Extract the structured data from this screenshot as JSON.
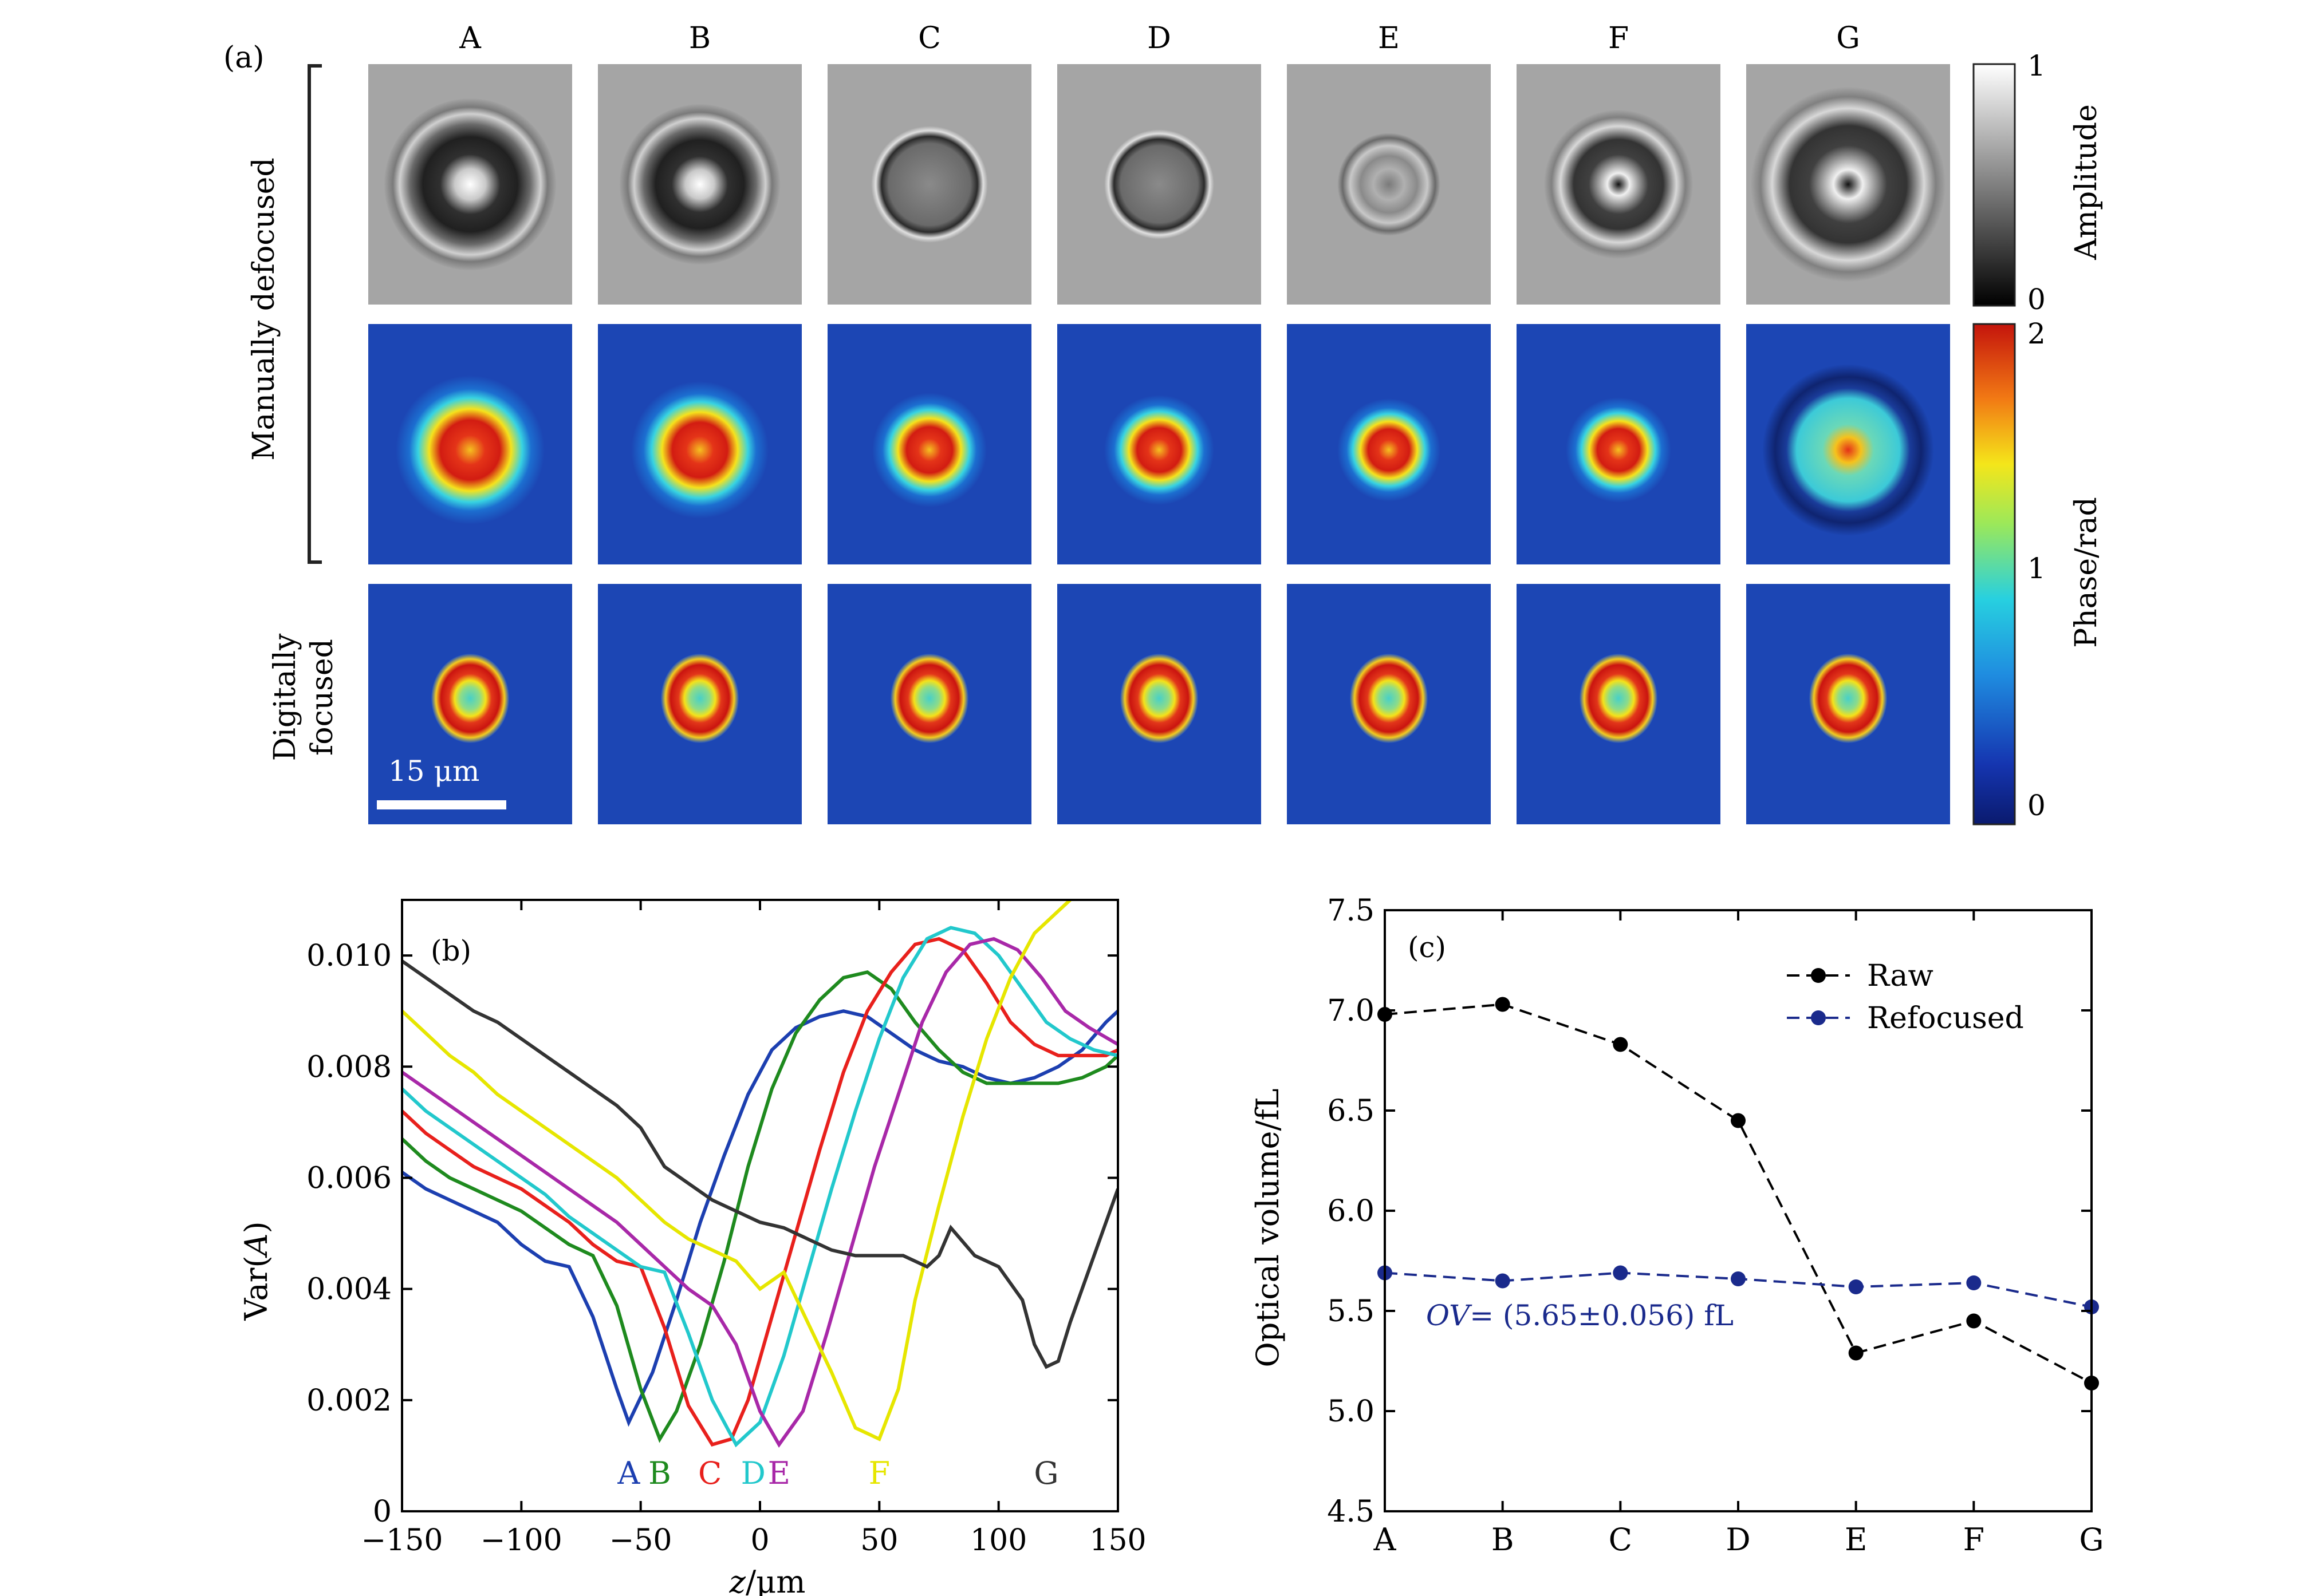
{
  "panel_a": {
    "label": "(a)",
    "columns": [
      "A",
      "B",
      "C",
      "D",
      "E",
      "F",
      "G"
    ],
    "row_label_defocused": "Manually defocused",
    "row_label_focused_1": "Digitally",
    "row_label_focused_2": "focused",
    "scalebar_label": "15 μm",
    "amplitude_colorbar": {
      "label": "Amplitude",
      "max": "1",
      "min": "0"
    },
    "phase_colorbar": {
      "label": "Phase/rad",
      "ticks": [
        "2",
        "1",
        "0"
      ]
    }
  },
  "chart_data": [
    {
      "type": "line",
      "panel_label": "(b)",
      "xlabel_italic": "z",
      "xlabel_unit": "/μm",
      "ylabel_prefix": "Var(",
      "ylabel_italic": "A",
      "ylabel_suffix": ")",
      "xlim": [
        -150,
        150
      ],
      "ylim": [
        0,
        0.011
      ],
      "xticks": [
        -150,
        -100,
        -50,
        0,
        50,
        100,
        150
      ],
      "xtick_labels": [
        "−150",
        "−100",
        "−50",
        "0",
        "50",
        "100",
        "150"
      ],
      "yticks": [
        0,
        0.002,
        0.004,
        0.006,
        0.008,
        0.01
      ],
      "ytick_labels": [
        "0",
        "0.002",
        "0.004",
        "0.006",
        "0.008",
        "0.010"
      ],
      "curve_labels_text": [
        "A",
        "B",
        "C",
        "D",
        "E",
        "F",
        "G"
      ],
      "series": [
        {
          "name": "A",
          "color": "#1c3fb0",
          "x": [
            -150,
            -140,
            -130,
            -120,
            -110,
            -100,
            -90,
            -80,
            -70,
            -60,
            -55,
            -45,
            -35,
            -25,
            -15,
            -5,
            5,
            15,
            25,
            35,
            45,
            55,
            65,
            75,
            85,
            95,
            105,
            115,
            125,
            135,
            145,
            150
          ],
          "y": [
            0.0061,
            0.0058,
            0.0056,
            0.0054,
            0.0052,
            0.0048,
            0.0045,
            0.0044,
            0.0035,
            0.0022,
            0.0016,
            0.0025,
            0.0038,
            0.0052,
            0.0064,
            0.0075,
            0.0083,
            0.0087,
            0.0089,
            0.009,
            0.0089,
            0.0086,
            0.0083,
            0.0081,
            0.008,
            0.0078,
            0.0077,
            0.0078,
            0.008,
            0.0083,
            0.0088,
            0.009
          ]
        },
        {
          "name": "B",
          "color": "#1e8a1e",
          "x": [
            -150,
            -140,
            -130,
            -120,
            -110,
            -100,
            -90,
            -80,
            -70,
            -60,
            -50,
            -42,
            -35,
            -25,
            -15,
            -5,
            5,
            15,
            25,
            35,
            45,
            55,
            65,
            75,
            85,
            95,
            105,
            115,
            125,
            135,
            145,
            150
          ],
          "y": [
            0.0067,
            0.0063,
            0.006,
            0.0058,
            0.0056,
            0.0054,
            0.0051,
            0.0048,
            0.0046,
            0.0037,
            0.0022,
            0.0013,
            0.0018,
            0.003,
            0.0045,
            0.0062,
            0.0076,
            0.0086,
            0.0092,
            0.0096,
            0.0097,
            0.0094,
            0.0088,
            0.0083,
            0.0079,
            0.0077,
            0.0077,
            0.0077,
            0.0077,
            0.0078,
            0.008,
            0.0082
          ]
        },
        {
          "name": "C",
          "color": "#e8201c",
          "x": [
            -150,
            -140,
            -130,
            -120,
            -110,
            -100,
            -90,
            -80,
            -70,
            -60,
            -50,
            -40,
            -30,
            -20,
            -12,
            -5,
            5,
            15,
            25,
            35,
            45,
            55,
            65,
            75,
            85,
            95,
            105,
            115,
            125,
            135,
            145,
            150
          ],
          "y": [
            0.0072,
            0.0068,
            0.0065,
            0.0062,
            0.006,
            0.0058,
            0.0055,
            0.0052,
            0.0048,
            0.0045,
            0.0044,
            0.0033,
            0.0019,
            0.0012,
            0.0013,
            0.002,
            0.0035,
            0.005,
            0.0065,
            0.0079,
            0.009,
            0.0097,
            0.0102,
            0.0103,
            0.0101,
            0.0095,
            0.0088,
            0.0084,
            0.0082,
            0.0082,
            0.0082,
            0.0083
          ]
        },
        {
          "name": "D",
          "color": "#22c8cc",
          "x": [
            -150,
            -140,
            -130,
            -120,
            -110,
            -100,
            -90,
            -80,
            -70,
            -60,
            -50,
            -40,
            -30,
            -20,
            -10,
            0,
            10,
            20,
            30,
            40,
            50,
            60,
            70,
            80,
            90,
            100,
            110,
            120,
            130,
            140,
            150
          ],
          "y": [
            0.0076,
            0.0072,
            0.0069,
            0.0066,
            0.0063,
            0.006,
            0.0057,
            0.0053,
            0.005,
            0.0047,
            0.0044,
            0.0043,
            0.0032,
            0.002,
            0.0012,
            0.0016,
            0.0028,
            0.0043,
            0.0058,
            0.0072,
            0.0085,
            0.0096,
            0.0103,
            0.0105,
            0.0104,
            0.01,
            0.0094,
            0.0088,
            0.0085,
            0.0083,
            0.0082
          ]
        },
        {
          "name": "E",
          "color": "#a828a8",
          "x": [
            -150,
            -140,
            -130,
            -120,
            -110,
            -100,
            -90,
            -80,
            -70,
            -60,
            -50,
            -40,
            -30,
            -20,
            -10,
            0,
            8,
            18,
            28,
            38,
            48,
            58,
            68,
            78,
            88,
            98,
            108,
            118,
            128,
            138,
            150
          ],
          "y": [
            0.0079,
            0.0076,
            0.0073,
            0.007,
            0.0067,
            0.0064,
            0.0061,
            0.0058,
            0.0055,
            0.0052,
            0.0048,
            0.0044,
            0.004,
            0.0037,
            0.003,
            0.0018,
            0.0012,
            0.0018,
            0.0032,
            0.0047,
            0.0062,
            0.0075,
            0.0088,
            0.0097,
            0.0102,
            0.0103,
            0.0101,
            0.0096,
            0.009,
            0.0087,
            0.0084
          ]
        },
        {
          "name": "F",
          "color": "#e6e600",
          "x": [
            -150,
            -140,
            -130,
            -120,
            -110,
            -100,
            -90,
            -80,
            -70,
            -60,
            -50,
            -40,
            -30,
            -20,
            -10,
            0,
            10,
            20,
            30,
            40,
            50,
            58,
            65,
            75,
            85,
            95,
            105,
            115,
            125,
            130
          ],
          "y": [
            0.009,
            0.0086,
            0.0082,
            0.0079,
            0.0075,
            0.0072,
            0.0069,
            0.0066,
            0.0063,
            0.006,
            0.0056,
            0.0052,
            0.0049,
            0.0047,
            0.0045,
            0.004,
            0.0043,
            0.0034,
            0.0025,
            0.0015,
            0.0013,
            0.0022,
            0.0038,
            0.0055,
            0.0071,
            0.0085,
            0.0096,
            0.0104,
            0.0108,
            0.011
          ]
        },
        {
          "name": "G",
          "color": "#333333",
          "x": [
            -150,
            -140,
            -130,
            -120,
            -110,
            -100,
            -90,
            -80,
            -70,
            -60,
            -50,
            -40,
            -30,
            -20,
            -10,
            0,
            10,
            20,
            30,
            40,
            50,
            60,
            70,
            75,
            80,
            90,
            100,
            110,
            115,
            120,
            125,
            130,
            140,
            150
          ],
          "y": [
            0.0099,
            0.0096,
            0.0093,
            0.009,
            0.0088,
            0.0085,
            0.0082,
            0.0079,
            0.0076,
            0.0073,
            0.0069,
            0.0062,
            0.0059,
            0.0056,
            0.0054,
            0.0052,
            0.0051,
            0.0049,
            0.0047,
            0.0046,
            0.0046,
            0.0046,
            0.0044,
            0.0046,
            0.0051,
            0.0046,
            0.0044,
            0.0038,
            0.003,
            0.0026,
            0.0027,
            0.0034,
            0.0046,
            0.0058
          ]
        }
      ]
    },
    {
      "type": "line",
      "panel_label": "(c)",
      "ylabel": "Optical volume/fL",
      "ylim": [
        4.5,
        7.5
      ],
      "yticks": [
        4.5,
        5.0,
        5.5,
        6.0,
        6.5,
        7.0,
        7.5
      ],
      "ytick_labels": [
        "4.5",
        "5.0",
        "5.5",
        "6.0",
        "6.5",
        "7.0",
        "7.5"
      ],
      "categories": [
        "A",
        "B",
        "C",
        "D",
        "E",
        "F",
        "G"
      ],
      "annotation_italic": "OV",
      "annotation_rest": "= (5.65±0.056) fL",
      "series": [
        {
          "name": "Raw",
          "color": "#000000",
          "values": [
            6.98,
            7.03,
            6.83,
            6.45,
            5.29,
            5.45,
            5.14
          ]
        },
        {
          "name": "Refocused",
          "color": "#1a2a8c",
          "values": [
            5.69,
            5.65,
            5.69,
            5.66,
            5.62,
            5.64,
            5.52
          ]
        }
      ],
      "legend_position": "top-right"
    }
  ]
}
